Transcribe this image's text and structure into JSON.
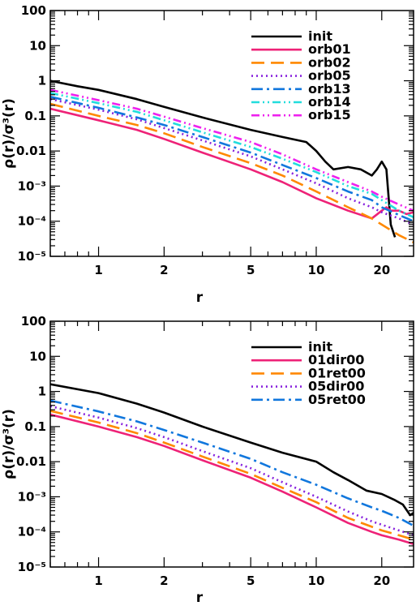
{
  "chart_data": [
    {
      "type": "line",
      "xlabel": "r",
      "ylabel": "ρ(r)/σ³(r)",
      "xscale": "log",
      "yscale": "log",
      "xlim": [
        0.6,
        28
      ],
      "ylim": [
        1e-05,
        100
      ],
      "x_ticks": [
        1,
        2,
        5,
        10,
        20
      ],
      "y_ticks": [
        100,
        10,
        1,
        0.1,
        0.01,
        0.001,
        0.0001,
        1e-05
      ],
      "y_tick_labels": [
        "100",
        "10",
        "1",
        "0.1",
        "0.01",
        "10⁻³",
        "10⁻⁴",
        "10⁻⁵"
      ],
      "legend": "top-right",
      "series": [
        {
          "name": "init",
          "color": "#000000",
          "dash": "solid",
          "points": [
            [
              0.6,
              1.0
            ],
            [
              0.8,
              0.7
            ],
            [
              1,
              0.55
            ],
            [
              1.5,
              0.3
            ],
            [
              2,
              0.18
            ],
            [
              3,
              0.09
            ],
            [
              5,
              0.04
            ],
            [
              7,
              0.025
            ],
            [
              9,
              0.018
            ],
            [
              10,
              0.01
            ],
            [
              11,
              0.005
            ],
            [
              12,
              0.003
            ],
            [
              14,
              0.0035
            ],
            [
              16,
              0.003
            ],
            [
              18,
              0.002
            ],
            [
              19,
              0.003
            ],
            [
              20,
              0.005
            ],
            [
              21,
              0.003
            ],
            [
              22,
              8e-05
            ],
            [
              23,
              3.5e-05
            ]
          ]
        },
        {
          "name": "orb01",
          "color": "#ee2277",
          "dash": "solid",
          "points": [
            [
              0.6,
              0.16
            ],
            [
              1,
              0.075
            ],
            [
              1.5,
              0.04
            ],
            [
              2,
              0.022
            ],
            [
              3,
              0.009
            ],
            [
              5,
              0.003
            ],
            [
              7,
              0.0013
            ],
            [
              10,
              0.00045
            ],
            [
              14,
              0.0002
            ],
            [
              18,
              0.00012
            ],
            [
              20,
              0.0002
            ],
            [
              21,
              0.00025
            ],
            [
              22,
              0.0002
            ],
            [
              24,
              0.0002
            ],
            [
              26,
              0.00016
            ],
            [
              28,
              0.00018
            ]
          ]
        },
        {
          "name": "orb02",
          "color": "#ff8800",
          "dash": "16,8",
          "points": [
            [
              0.6,
              0.22
            ],
            [
              1,
              0.1
            ],
            [
              1.5,
              0.055
            ],
            [
              2,
              0.032
            ],
            [
              3,
              0.013
            ],
            [
              5,
              0.0045
            ],
            [
              7,
              0.002
            ],
            [
              10,
              0.0007
            ],
            [
              14,
              0.00025
            ],
            [
              18,
              0.00012
            ],
            [
              20,
              8e-05
            ],
            [
              24,
              4e-05
            ],
            [
              28,
              2.5e-05
            ]
          ]
        },
        {
          "name": "orb05",
          "color": "#8822dd",
          "dash": "2,4",
          "points": [
            [
              0.6,
              0.3
            ],
            [
              1,
              0.15
            ],
            [
              1.5,
              0.08
            ],
            [
              2,
              0.045
            ],
            [
              3,
              0.02
            ],
            [
              5,
              0.007
            ],
            [
              7,
              0.003
            ],
            [
              10,
              0.0012
            ],
            [
              14,
              0.00045
            ],
            [
              18,
              0.00025
            ],
            [
              20,
              0.00018
            ],
            [
              24,
              0.00012
            ],
            [
              28,
              8e-05
            ]
          ]
        },
        {
          "name": "orb13",
          "color": "#1177dd",
          "dash": "14,5,3,5",
          "points": [
            [
              0.6,
              0.35
            ],
            [
              1,
              0.17
            ],
            [
              1.5,
              0.09
            ],
            [
              2,
              0.055
            ],
            [
              3,
              0.025
            ],
            [
              5,
              0.009
            ],
            [
              7,
              0.004
            ],
            [
              10,
              0.0017
            ],
            [
              14,
              0.0007
            ],
            [
              18,
              0.0004
            ],
            [
              20,
              0.00025
            ],
            [
              24,
              0.00015
            ],
            [
              28,
              0.0001
            ]
          ]
        },
        {
          "name": "orb14",
          "color": "#22dddd",
          "dash": "10,4,2,4,2,4",
          "points": [
            [
              0.6,
              0.45
            ],
            [
              1,
              0.23
            ],
            [
              1.5,
              0.13
            ],
            [
              2,
              0.075
            ],
            [
              3,
              0.034
            ],
            [
              5,
              0.013
            ],
            [
              7,
              0.006
            ],
            [
              10,
              0.0025
            ],
            [
              14,
              0.001
            ],
            [
              18,
              0.0006
            ],
            [
              20,
              0.0004
            ],
            [
              24,
              0.0002
            ],
            [
              28,
              0.00013
            ]
          ]
        },
        {
          "name": "orb15",
          "color": "#ee22ee",
          "dash": "10,4,2,4,2,4",
          "points": [
            [
              0.6,
              0.55
            ],
            [
              1,
              0.28
            ],
            [
              1.5,
              0.16
            ],
            [
              2,
              0.095
            ],
            [
              3,
              0.045
            ],
            [
              5,
              0.018
            ],
            [
              7,
              0.008
            ],
            [
              10,
              0.003
            ],
            [
              14,
              0.0013
            ],
            [
              18,
              0.0007
            ],
            [
              20,
              0.0005
            ],
            [
              24,
              0.0003
            ],
            [
              28,
              0.0002
            ]
          ]
        }
      ]
    },
    {
      "type": "line",
      "xlabel": "r",
      "ylabel": "ρ(r)/σ³(r)",
      "xscale": "log",
      "yscale": "log",
      "xlim": [
        0.6,
        28
      ],
      "ylim": [
        1e-05,
        100
      ],
      "x_ticks": [
        1,
        2,
        5,
        10,
        20
      ],
      "y_ticks": [
        100,
        10,
        1,
        0.1,
        0.01,
        0.001,
        0.0001,
        1e-05
      ],
      "y_tick_labels": [
        "100",
        "10",
        "1",
        "0.1",
        "0.01",
        "10⁻³",
        "10⁻⁴",
        "10⁻⁵"
      ],
      "legend": "top-right",
      "series": [
        {
          "name": "init",
          "color": "#000000",
          "dash": "solid",
          "points": [
            [
              0.6,
              1.6
            ],
            [
              1,
              0.9
            ],
            [
              1.5,
              0.45
            ],
            [
              2,
              0.25
            ],
            [
              3,
              0.1
            ],
            [
              5,
              0.035
            ],
            [
              7,
              0.018
            ],
            [
              10,
              0.01
            ],
            [
              12,
              0.005
            ],
            [
              14,
              0.003
            ],
            [
              17,
              0.0015
            ],
            [
              20,
              0.0012
            ],
            [
              23,
              0.0008
            ],
            [
              25,
              0.0006
            ],
            [
              27,
              0.0003
            ],
            [
              28,
              0.00035
            ]
          ]
        },
        {
          "name": "01dir00",
          "color": "#ee2277",
          "dash": "solid",
          "points": [
            [
              0.6,
              0.22
            ],
            [
              1,
              0.1
            ],
            [
              1.5,
              0.05
            ],
            [
              2,
              0.028
            ],
            [
              3,
              0.011
            ],
            [
              5,
              0.0035
            ],
            [
              7,
              0.0014
            ],
            [
              10,
              0.0005
            ],
            [
              14,
              0.00018
            ],
            [
              18,
              0.0001
            ],
            [
              20,
              8e-05
            ],
            [
              24,
              6e-05
            ],
            [
              28,
              4.5e-05
            ]
          ]
        },
        {
          "name": "01ret00",
          "color": "#ff8800",
          "dash": "16,8",
          "points": [
            [
              0.6,
              0.28
            ],
            [
              1,
              0.13
            ],
            [
              1.5,
              0.065
            ],
            [
              2,
              0.035
            ],
            [
              3,
              0.014
            ],
            [
              5,
              0.0045
            ],
            [
              7,
              0.0018
            ],
            [
              10,
              0.0007
            ],
            [
              14,
              0.00025
            ],
            [
              18,
              0.00014
            ],
            [
              20,
              0.00011
            ],
            [
              24,
              8e-05
            ],
            [
              28,
              6e-05
            ]
          ]
        },
        {
          "name": "05dir00",
          "color": "#8822dd",
          "dash": "2,4",
          "points": [
            [
              0.6,
              0.38
            ],
            [
              1,
              0.18
            ],
            [
              1.5,
              0.09
            ],
            [
              2,
              0.05
            ],
            [
              3,
              0.02
            ],
            [
              5,
              0.0065
            ],
            [
              7,
              0.0026
            ],
            [
              10,
              0.001
            ],
            [
              14,
              0.00038
            ],
            [
              18,
              0.0002
            ],
            [
              20,
              0.00016
            ],
            [
              24,
              0.00011
            ],
            [
              28,
              8e-05
            ]
          ]
        },
        {
          "name": "05ret00",
          "color": "#1177dd",
          "dash": "14,5,3,5",
          "points": [
            [
              0.6,
              0.55
            ],
            [
              1,
              0.27
            ],
            [
              1.5,
              0.14
            ],
            [
              2,
              0.08
            ],
            [
              3,
              0.035
            ],
            [
              5,
              0.012
            ],
            [
              7,
              0.005
            ],
            [
              10,
              0.0022
            ],
            [
              14,
              0.0009
            ],
            [
              18,
              0.0005
            ],
            [
              20,
              0.0004
            ],
            [
              24,
              0.00025
            ],
            [
              28,
              0.00015
            ]
          ]
        }
      ]
    }
  ]
}
